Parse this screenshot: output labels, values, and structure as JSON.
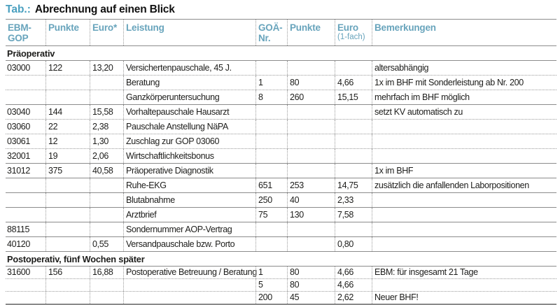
{
  "title": {
    "prefix": "Tab.:",
    "text": "Abrechnung auf einen Blick"
  },
  "colors": {
    "accent_teal": "#4aa0c0",
    "header_teal": "#68a4bc",
    "line_gray": "#8c8c8c",
    "text": "#1d1d1b"
  },
  "columns": [
    {
      "id": "ebm-gop",
      "label": "EBM-\nGOP"
    },
    {
      "id": "ebm-punkte",
      "label": "Punkte"
    },
    {
      "id": "ebm-euro",
      "label": "Euro*"
    },
    {
      "id": "leistung",
      "label": "Leistung"
    },
    {
      "id": "goa-nr",
      "label": "GOÄ-\nNr."
    },
    {
      "id": "goa-punkte",
      "label": "Punkte"
    },
    {
      "id": "goa-euro",
      "label": "Euro",
      "sublabel": "(1-fach)"
    },
    {
      "id": "bemerkungen",
      "label": "Bemerkungen"
    }
  ],
  "sections": [
    {
      "header": "Präoperativ",
      "rows": [
        {
          "cells": [
            "03000",
            "122",
            "13,20",
            "Versichertenpauschale, 45 J.",
            "",
            "",
            "",
            "altersabhängig"
          ],
          "sep": "dotted"
        },
        {
          "cells": [
            "",
            "",
            "",
            "Beratung",
            "1",
            "80",
            "4,66",
            "1x im BHF mit Sonderleistung ab Nr. 200"
          ],
          "sep": "dotted"
        },
        {
          "cells": [
            "",
            "",
            "",
            "Ganzkörperuntersuchung",
            "8",
            "260",
            "15,15",
            "mehrfach im BHF möglich"
          ],
          "sep": "solid"
        },
        {
          "cells": [
            "03040",
            "144",
            "15,58",
            "Vorhaltepauschale Hausarzt",
            "",
            "",
            "",
            "setzt KV automatisch zu"
          ],
          "sep": "dotted"
        },
        {
          "cells": [
            "03060",
            "22",
            "2,38",
            "Pauschale Anstellung NäPA",
            "",
            "",
            "",
            ""
          ],
          "sep": "dotted"
        },
        {
          "cells": [
            "03061",
            "12",
            "1,30",
            "Zuschlag zur GOP 03060",
            "",
            "",
            "",
            ""
          ],
          "sep": "dotted"
        },
        {
          "cells": [
            "32001",
            "19",
            "2,06",
            "Wirtschaftlichkeitsbonus",
            "",
            "",
            "",
            ""
          ],
          "sep": "solid"
        },
        {
          "cells": [
            "31012",
            "375",
            "40,58",
            "Präoperative Diagnostik",
            "",
            "",
            "",
            "1x im BHF"
          ],
          "sep": "solid"
        },
        {
          "cells": [
            "",
            "",
            "",
            "Ruhe-EKG",
            "651",
            "253",
            "14,75",
            "zusätzlich die anfallenden Laborpositionen"
          ],
          "sep": "solid"
        },
        {
          "cells": [
            "",
            "",
            "",
            "Blutabnahme",
            "250",
            "40",
            "2,33",
            ""
          ],
          "sep": "solid"
        },
        {
          "cells": [
            "",
            "",
            "",
            "Arztbrief",
            "75",
            "130",
            "7,58",
            ""
          ],
          "sep": "solid"
        },
        {
          "cells": [
            "88115",
            "",
            "",
            "Sondernummer AOP-Vertrag",
            "",
            "",
            "",
            ""
          ],
          "sep": "solid"
        },
        {
          "cells": [
            "40120",
            "",
            "0,55",
            "Versandpauschale bzw. Porto",
            "",
            "",
            "0,80",
            ""
          ],
          "sep": "solid"
        }
      ]
    },
    {
      "header": "Postoperativ, fünf Wochen später",
      "rows": [
        {
          "cells": [
            "31600",
            "156",
            "16,88",
            "Postoperative Betreuung / Beratung",
            "1",
            "80",
            "4,66",
            "EBM: für insgesamt 21 Tage"
          ],
          "sep": "dotted"
        },
        {
          "cells": [
            "",
            "",
            "",
            "",
            "5",
            "80",
            "4,66",
            ""
          ],
          "sep": "dotted"
        },
        {
          "cells": [
            "",
            "",
            "",
            "",
            "200",
            "45",
            "2,62",
            "Neuer BHF!"
          ],
          "sep": "solid"
        }
      ]
    }
  ]
}
